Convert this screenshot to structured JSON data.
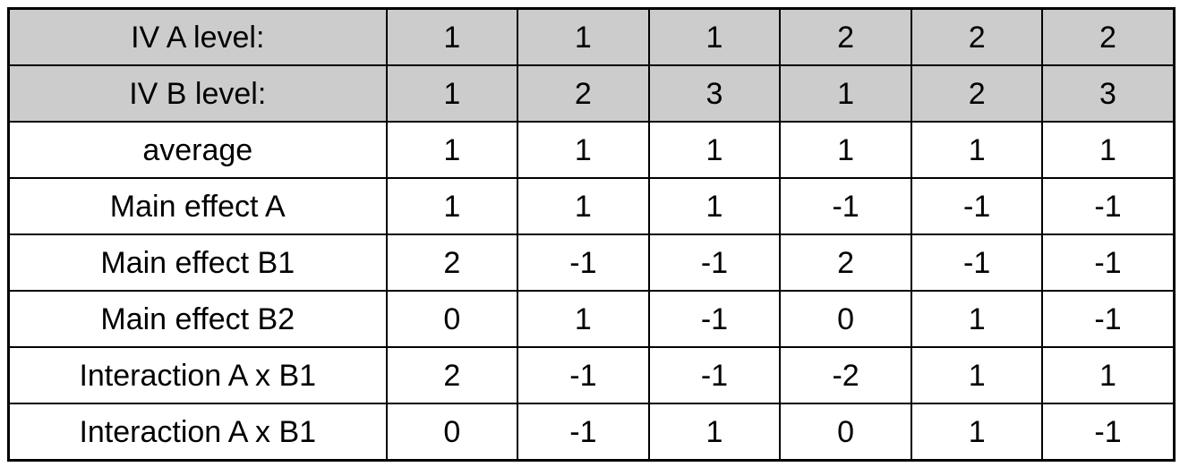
{
  "colors": {
    "header_row_bg": "#cccccc",
    "cell_bg": "#ffffff",
    "border": "#000000",
    "text": "#000000"
  },
  "chart_data": {
    "type": "table",
    "header_row_labels": [
      "IV A level:",
      "IV B level:"
    ],
    "rows": [
      {
        "label": "IV A level:",
        "values": [
          1,
          1,
          1,
          2,
          2,
          2
        ],
        "shaded": true
      },
      {
        "label": "IV B level:",
        "values": [
          1,
          2,
          3,
          1,
          2,
          3
        ],
        "shaded": true
      },
      {
        "label": "average",
        "values": [
          1,
          1,
          1,
          1,
          1,
          1
        ],
        "shaded": false
      },
      {
        "label": "Main effect A",
        "values": [
          1,
          1,
          1,
          -1,
          -1,
          -1
        ],
        "shaded": false
      },
      {
        "label": "Main effect B1",
        "values": [
          2,
          -1,
          -1,
          2,
          -1,
          -1
        ],
        "shaded": false
      },
      {
        "label": "Main effect B2",
        "values": [
          0,
          1,
          -1,
          0,
          1,
          -1
        ],
        "shaded": false
      },
      {
        "label": "Interaction A x B1",
        "values": [
          2,
          -1,
          -1,
          -2,
          1,
          1
        ],
        "shaded": false
      },
      {
        "label": "Interaction A x B1",
        "values": [
          0,
          -1,
          1,
          0,
          1,
          -1
        ],
        "shaded": false
      }
    ]
  }
}
